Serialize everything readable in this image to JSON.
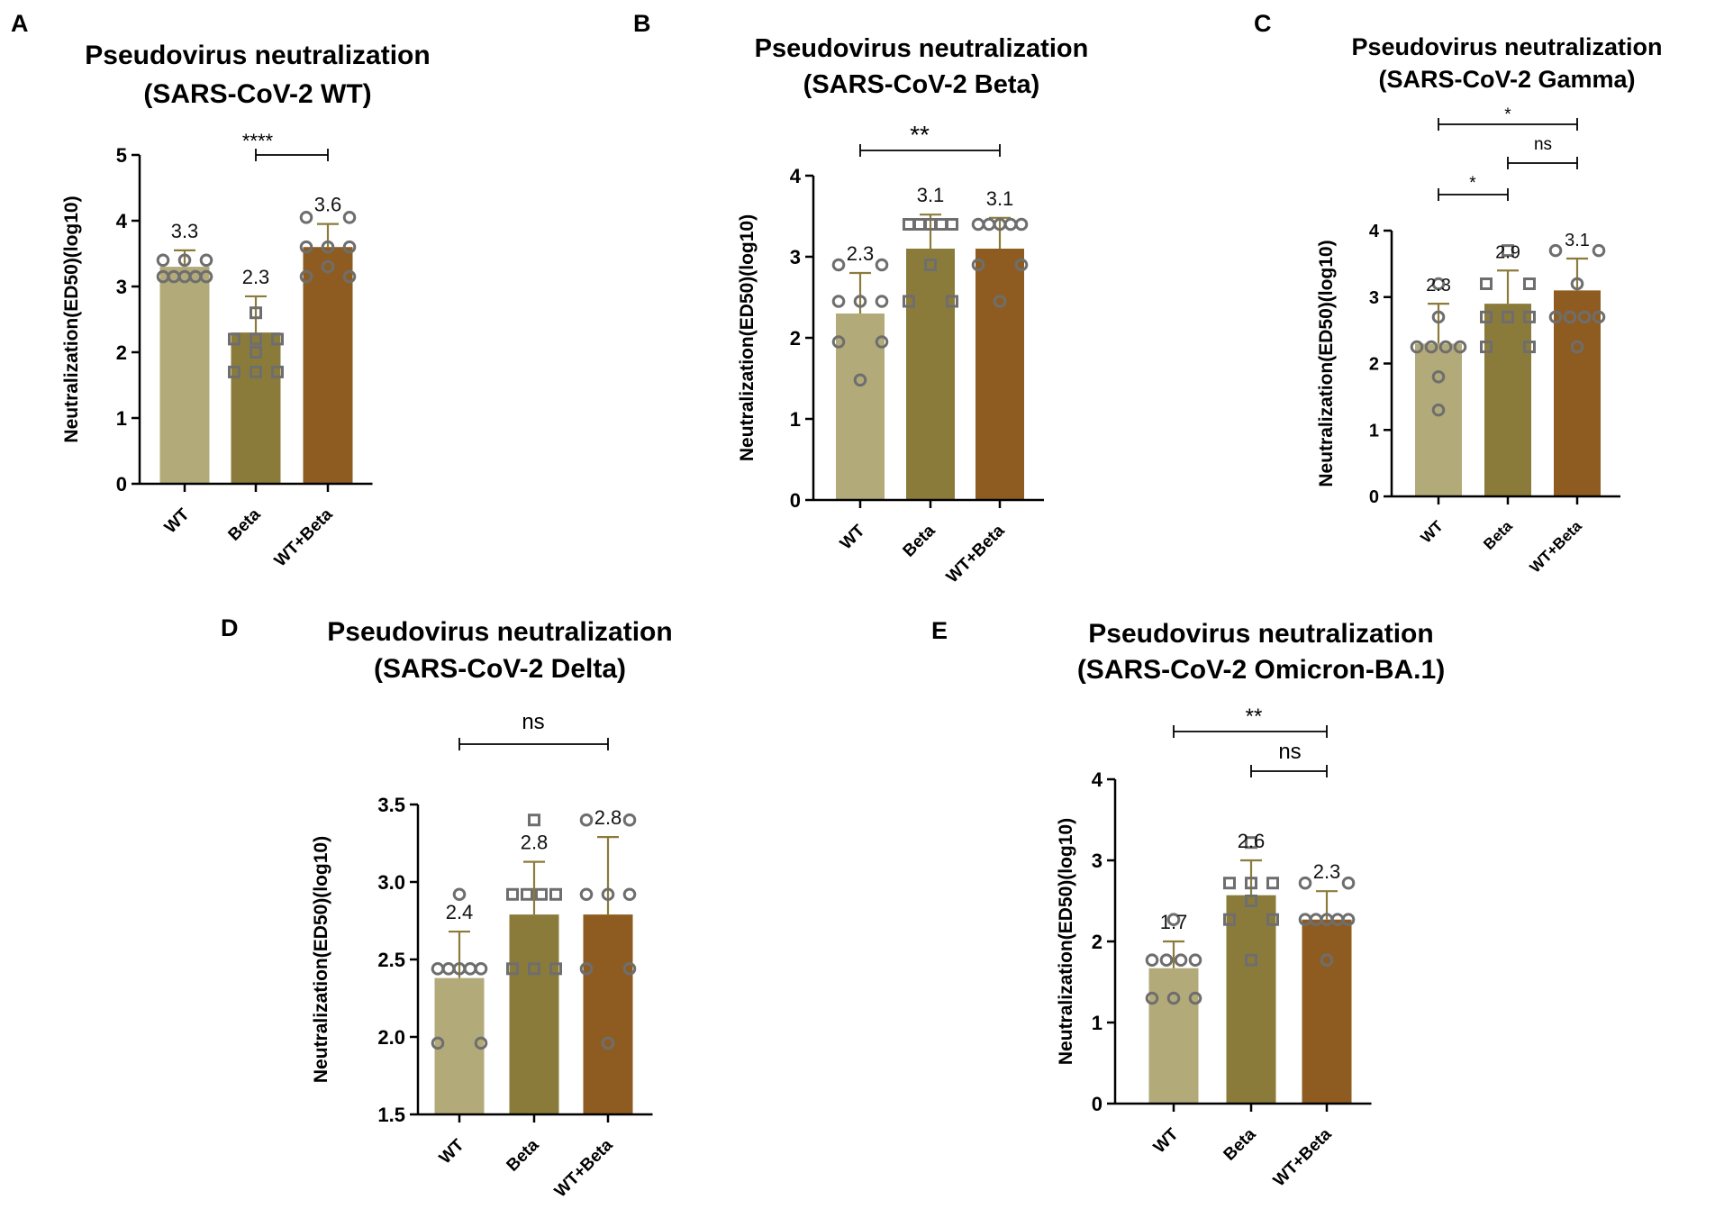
{
  "figure": {
    "panel_labels": [
      "A",
      "B",
      "C",
      "D",
      "E"
    ]
  },
  "colors": {
    "wt": "#b3aa7a",
    "beta": "#8b7b3a",
    "wt_beta": "#8e5c20",
    "error": "#8b7b3a",
    "point": "#6e6e6e"
  },
  "chart_data": [
    {
      "id": "A",
      "type": "bar",
      "title": [
        "Pseudovirus neutralization",
        "(SARS-CoV-2 WT)"
      ],
      "ylabel": "Neutralization(ED50)(log10)",
      "ylim": [
        0,
        5
      ],
      "yticks": [
        "0",
        "1",
        "2",
        "3",
        "4",
        "5"
      ],
      "ytick_values": [
        0,
        1,
        2,
        3,
        4,
        5
      ],
      "categories": [
        "WT",
        "Beta",
        "WT+Beta"
      ],
      "values": [
        3.3,
        2.3,
        3.6
      ],
      "value_labels": [
        "3.3",
        "2.3",
        "3.6"
      ],
      "error_upper": [
        3.55,
        2.85,
        3.95
      ],
      "markers": [
        "circle",
        "square",
        "circle"
      ],
      "points": [
        [
          3.15,
          3.15,
          3.15,
          3.15,
          3.15,
          3.4,
          3.4,
          3.4
        ],
        [
          2.6,
          2.2,
          2.2,
          2.2,
          1.7,
          1.7,
          1.7,
          2.0
        ],
        [
          4.05,
          4.05,
          3.6,
          3.6,
          3.6,
          3.15,
          3.15,
          3.3
        ]
      ],
      "significance": [
        {
          "from": 1,
          "to": 2,
          "label": "****"
        }
      ]
    },
    {
      "id": "B",
      "type": "bar",
      "title": [
        "Pseudovirus neutralization",
        "(SARS-CoV-2 Beta)"
      ],
      "ylabel": "Neutralization(ED50)(log10)",
      "ylim": [
        0,
        4
      ],
      "yticks": [
        "0",
        "1",
        "2",
        "3",
        "4"
      ],
      "ytick_values": [
        0,
        1,
        2,
        3,
        4
      ],
      "categories": [
        "WT",
        "Beta",
        "WT+Beta"
      ],
      "values": [
        2.3,
        3.1,
        3.1
      ],
      "value_labels": [
        "2.3",
        "3.1",
        "3.1"
      ],
      "error_upper": [
        2.8,
        3.52,
        3.48
      ],
      "markers": [
        "circle",
        "square",
        "circle"
      ],
      "points": [
        [
          2.9,
          2.9,
          2.45,
          2.45,
          2.45,
          1.95,
          1.95,
          1.48
        ],
        [
          3.4,
          3.4,
          3.4,
          3.4,
          3.4,
          2.9,
          2.45,
          2.45
        ],
        [
          3.4,
          3.4,
          3.4,
          3.4,
          3.4,
          2.9,
          2.9,
          2.45
        ]
      ],
      "significance": [
        {
          "from": 0,
          "to": 2,
          "label": "**"
        }
      ]
    },
    {
      "id": "C",
      "type": "bar",
      "title": [
        "Pseudovirus neutralization",
        "(SARS-CoV-2 Gamma)"
      ],
      "ylabel": "Neutralization(ED50)(log10)",
      "ylim": [
        0,
        4
      ],
      "yticks": [
        "0",
        "1",
        "2",
        "3",
        "4"
      ],
      "ytick_values": [
        0,
        1,
        2,
        3,
        4
      ],
      "categories": [
        "WT",
        "Beta",
        "WT+Beta"
      ],
      "values": [
        2.3,
        2.9,
        3.1
      ],
      "value_labels": [
        "2.3",
        "2.9",
        "3.1"
      ],
      "error_upper": [
        2.9,
        3.4,
        3.58
      ],
      "markers": [
        "circle",
        "square",
        "circle"
      ],
      "points": [
        [
          3.2,
          2.7,
          2.25,
          2.25,
          2.25,
          1.8,
          1.3,
          2.25
        ],
        [
          3.7,
          3.2,
          3.2,
          2.7,
          2.7,
          2.7,
          2.25,
          2.25
        ],
        [
          3.7,
          3.7,
          3.2,
          2.7,
          2.7,
          2.7,
          2.25,
          2.7
        ]
      ],
      "significance": [
        {
          "from": 0,
          "to": 2,
          "label": "*"
        },
        {
          "from": 1,
          "to": 2,
          "label": "ns"
        },
        {
          "from": 0,
          "to": 1,
          "label": "*"
        }
      ]
    },
    {
      "id": "D",
      "type": "bar",
      "title": [
        "Pseudovirus neutralization",
        "(SARS-CoV-2 Delta)"
      ],
      "ylabel": "Neutralization(ED50)(log10)",
      "ylim": [
        1.5,
        3.5
      ],
      "yticks": [
        "1.5",
        "2.0",
        "2.5",
        "3.0",
        "3.5"
      ],
      "ytick_values": [
        1.5,
        2.0,
        2.5,
        3.0,
        3.5
      ],
      "categories": [
        "WT",
        "Beta",
        "WT+Beta"
      ],
      "values": [
        2.38,
        2.79,
        2.79
      ],
      "value_labels": [
        "2.4",
        "2.8",
        "2.8"
      ],
      "error_upper": [
        2.68,
        3.13,
        3.29
      ],
      "markers": [
        "circle",
        "square",
        "circle"
      ],
      "points": [
        [
          2.92,
          2.44,
          2.44,
          2.44,
          2.44,
          1.96,
          1.96,
          2.44
        ],
        [
          3.4,
          2.92,
          2.92,
          2.92,
          2.92,
          2.44,
          2.44,
          2.44
        ],
        [
          3.4,
          3.4,
          2.92,
          2.92,
          2.92,
          2.44,
          2.44,
          1.96
        ]
      ],
      "significance": [
        {
          "from": 0,
          "to": 2,
          "label": "ns"
        }
      ]
    },
    {
      "id": "E",
      "type": "bar",
      "title": [
        "Pseudovirus neutralization",
        "(SARS-CoV-2 Omicron-BA.1)"
      ],
      "ylabel": "Neutralization(ED50)(log10)",
      "ylim": [
        0,
        4
      ],
      "yticks": [
        "0",
        "1",
        "2",
        "3",
        "4"
      ],
      "ytick_values": [
        0,
        1,
        2,
        3,
        4
      ],
      "categories": [
        "WT",
        "Beta",
        "WT+Beta"
      ],
      "values": [
        1.67,
        2.57,
        2.27
      ],
      "value_labels": [
        "1.7",
        "2.6",
        "2.3"
      ],
      "error_upper": [
        2.0,
        3.0,
        2.62
      ],
      "markers": [
        "circle",
        "square",
        "circle"
      ],
      "points": [
        [
          2.27,
          1.77,
          1.77,
          1.77,
          1.77,
          1.3,
          1.3,
          1.3
        ],
        [
          3.22,
          2.72,
          2.72,
          2.72,
          2.27,
          2.27,
          1.77,
          2.5
        ],
        [
          2.72,
          2.72,
          2.27,
          2.27,
          2.27,
          2.27,
          1.77,
          2.27
        ]
      ],
      "significance": [
        {
          "from": 0,
          "to": 2,
          "label": "**"
        },
        {
          "from": 1,
          "to": 2,
          "label": "ns"
        }
      ]
    }
  ]
}
